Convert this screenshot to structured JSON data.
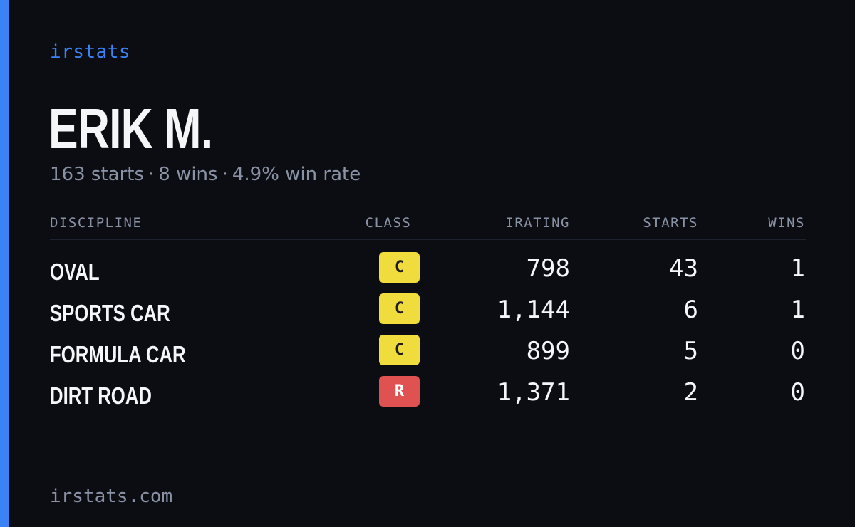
{
  "brand": "irstats",
  "driver": {
    "name": "ERIK M.",
    "starts": "163 starts",
    "wins": "8 wins",
    "win_rate": "4.9% win rate",
    "separator": "·"
  },
  "table": {
    "headers": {
      "discipline": "DISCIPLINE",
      "class": "CLASS",
      "irating": "IRATING",
      "starts": "STARTS",
      "wins": "WINS"
    },
    "rows": [
      {
        "discipline": "OVAL",
        "class": "C",
        "class_color": "#f0dc3c",
        "irating": "798",
        "starts": "43",
        "wins": "1"
      },
      {
        "discipline": "SPORTS CAR",
        "class": "C",
        "class_color": "#f0dc3c",
        "irating": "1,144",
        "starts": "6",
        "wins": "1"
      },
      {
        "discipline": "FORMULA CAR",
        "class": "C",
        "class_color": "#f0dc3c",
        "irating": "899",
        "starts": "5",
        "wins": "0"
      },
      {
        "discipline": "DIRT ROAD",
        "class": "R",
        "class_color": "#e05252",
        "irating": "1,371",
        "starts": "2",
        "wins": "0"
      }
    ]
  },
  "footer": "irstats.com",
  "colors": {
    "accent": "#3b82f6",
    "background": "#0b0d13",
    "text_primary": "#f5f6f8",
    "text_muted": "#8a92a6"
  }
}
